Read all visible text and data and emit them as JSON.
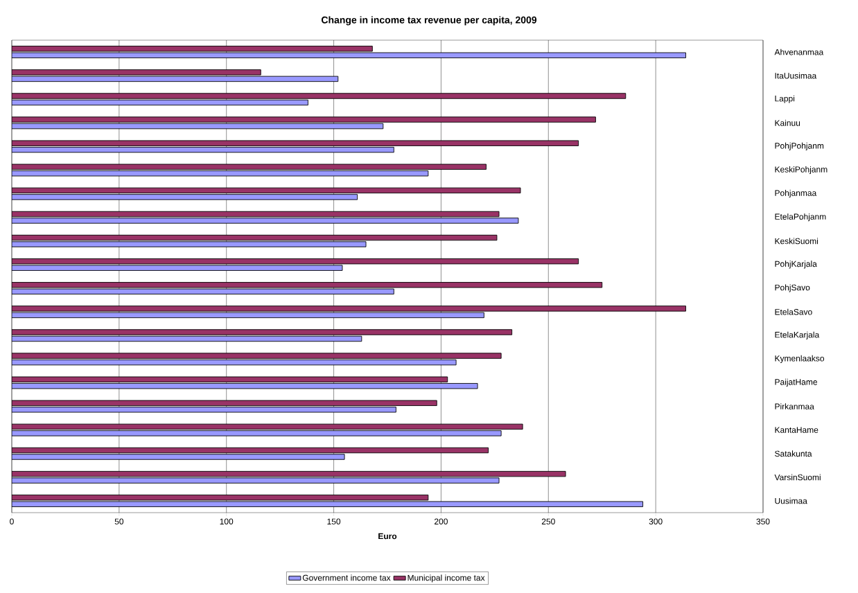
{
  "chart_data": {
    "type": "bar",
    "orientation": "horizontal",
    "title": "Change in income tax revenue per capita, 2009",
    "xlabel": "Euro",
    "categories": [
      "Ahvenanmaa",
      "ItaUusimaa",
      "Lappi",
      "Kainuu",
      "PohjPohjanm",
      "KeskiPohjanm",
      "Pohjanmaa",
      "EtelaPohjanm",
      "KeskiSuomi",
      "PohjKarjala",
      "PohjSavo",
      "EtelaSavo",
      "EtelaKarjala",
      "Kymenlaakso",
      "PaijatHame",
      "Pirkanmaa",
      "KantaHame",
      "Satakunta",
      "VarsinSuomi",
      "Uusimaa"
    ],
    "series": [
      {
        "name": "Government income tax",
        "color": "#9999ff",
        "values": [
          314,
          152,
          138,
          173,
          178,
          194,
          161,
          236,
          165,
          154,
          178,
          220,
          163,
          207,
          217,
          179,
          228,
          155,
          227,
          294
        ]
      },
      {
        "name": "Municipal income tax",
        "color": "#993366",
        "values": [
          168,
          116,
          286,
          272,
          264,
          221,
          237,
          227,
          226,
          264,
          275,
          314,
          233,
          228,
          203,
          198,
          238,
          222,
          258,
          194
        ]
      }
    ],
    "xlim": [
      0,
      350
    ],
    "xticks": [
      0,
      50,
      100,
      150,
      200,
      250,
      300,
      350
    ],
    "grid": "x",
    "legend": "bottom"
  }
}
